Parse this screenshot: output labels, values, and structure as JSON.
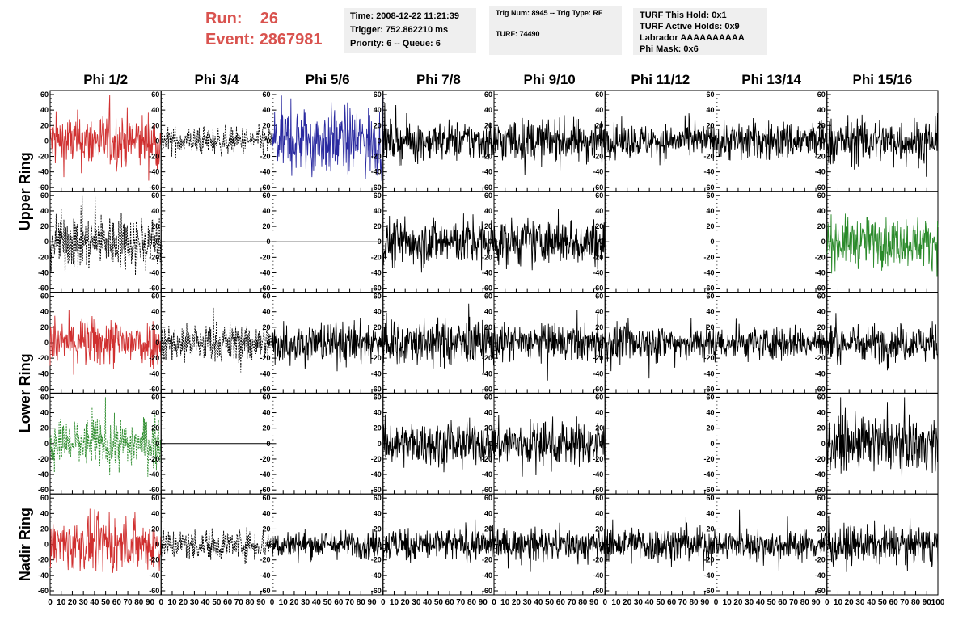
{
  "header": {
    "run_label": "Run:",
    "run_value": "26",
    "event_label": "Event:",
    "event_value": "2867981"
  },
  "info_boxes": {
    "time": "Time: 2008-12-22 11:21:39",
    "trigger": "Trigger: 752.862210 ms",
    "priority": "Priority: 6 -- Queue: 6",
    "trig_num": "Trig Num: 8945 -- Trig Type: RF",
    "turf": "TURF: 74490",
    "turf_this_hold": "TURF This Hold: 0x1",
    "turf_active_holds": "TURF Active Holds: 0x9",
    "labrador": "Labrador AAAAAAAAAA",
    "phi_mask": "Phi Mask: 0x6"
  },
  "chart_data": {
    "type": "line",
    "column_titles": [
      "Phi 1/2",
      "Phi 3/4",
      "Phi 5/6",
      "Phi 7/8",
      "Phi 9/10",
      "Phi 11/12",
      "Phi 13/14",
      "Phi 15/16"
    ],
    "row_labels": [
      {
        "text": "Upper Ring",
        "rows": [
          0,
          1
        ]
      },
      {
        "text": "Lower Ring",
        "rows": [
          2,
          3
        ]
      },
      {
        "text": "Nadir Ring",
        "rows": [
          4,
          4
        ]
      }
    ],
    "xlim": [
      0,
      100
    ],
    "ylim": [
      -60,
      60
    ],
    "x_ticks": [
      "0",
      "10",
      "20",
      "30",
      "40",
      "50",
      "60",
      "70",
      "80",
      "90",
      "100"
    ],
    "y_ticks": [
      "60",
      "40",
      "20",
      "0",
      "-20",
      "-40",
      "-60"
    ],
    "colors": {
      "red": "#d03030",
      "black": "#000000",
      "blue": "#2a2aa0",
      "green": "#2a8a2a"
    },
    "samples_per_trace": 260,
    "panels": [
      [
        {
          "color": "red",
          "amp": 18,
          "dashed": false
        },
        {
          "color": "black",
          "amp": 9,
          "dashed": true
        },
        {
          "color": "blue",
          "amp": 22,
          "dashed": false
        },
        {
          "color": "black",
          "amp": 13,
          "dashed": false
        },
        {
          "color": "black",
          "amp": 14,
          "dashed": false
        },
        {
          "color": "black",
          "amp": 11,
          "dashed": false
        },
        {
          "color": "black",
          "amp": 13,
          "dashed": false
        },
        {
          "color": "black",
          "amp": 15,
          "dashed": false
        }
      ],
      [
        {
          "color": "black",
          "amp": 18,
          "dashed": true
        },
        {
          "color": "black",
          "amp": 0,
          "dashed": false
        },
        {
          "color": "black",
          "amp": 0,
          "dashed": false
        },
        {
          "color": "black",
          "amp": 16,
          "dashed": false
        },
        {
          "color": "black",
          "amp": 15,
          "dashed": false
        },
        null,
        null,
        {
          "color": "green",
          "amp": 16,
          "dashed": false
        }
      ],
      [
        {
          "color": "red",
          "amp": 16,
          "dashed": false
        },
        {
          "color": "black",
          "amp": 13,
          "dashed": true
        },
        {
          "color": "black",
          "amp": 14,
          "dashed": false
        },
        {
          "color": "black",
          "amp": 15,
          "dashed": false
        },
        {
          "color": "black",
          "amp": 12,
          "dashed": false
        },
        {
          "color": "black",
          "amp": 12,
          "dashed": false
        },
        {
          "color": "black",
          "amp": 11,
          "dashed": false
        },
        {
          "color": "black",
          "amp": 12,
          "dashed": false
        }
      ],
      [
        {
          "color": "green",
          "amp": 16,
          "dashed": true
        },
        {
          "color": "black",
          "amp": 0,
          "dashed": false
        },
        null,
        {
          "color": "black",
          "amp": 14,
          "dashed": false
        },
        {
          "color": "black",
          "amp": 15,
          "dashed": false
        },
        null,
        null,
        {
          "color": "black",
          "amp": 17,
          "dashed": false
        }
      ],
      [
        {
          "color": "red",
          "amp": 17,
          "dashed": false
        },
        {
          "color": "black",
          "amp": 10,
          "dashed": true
        },
        {
          "color": "black",
          "amp": 9,
          "dashed": false
        },
        {
          "color": "black",
          "amp": 11,
          "dashed": false
        },
        {
          "color": "black",
          "amp": 10,
          "dashed": false
        },
        {
          "color": "black",
          "amp": 12,
          "dashed": false
        },
        {
          "color": "black",
          "amp": 10,
          "dashed": false
        },
        {
          "color": "black",
          "amp": 12,
          "dashed": false
        }
      ]
    ]
  }
}
